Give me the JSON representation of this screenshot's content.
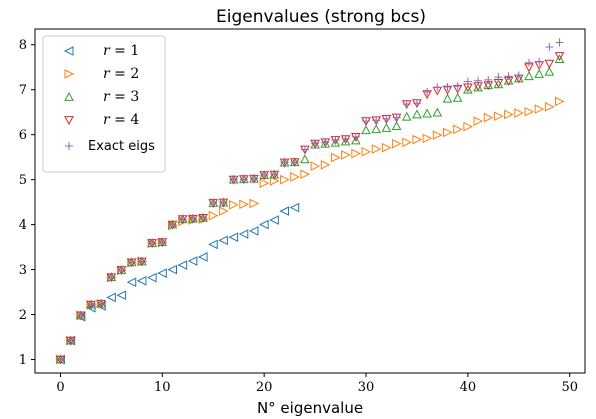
{
  "chart_data": {
    "type": "scatter",
    "title": "Eigenvalues (strong bcs)",
    "xlabel": "N° eigenvalue",
    "ylabel": "",
    "xlim": [
      -2.5,
      51.5
    ],
    "ylim": [
      0.7,
      8.35
    ],
    "xticks": [
      0,
      10,
      20,
      30,
      40,
      50
    ],
    "yticks": [
      1,
      2,
      3,
      4,
      5,
      6,
      7,
      8
    ],
    "grid": false,
    "legend_position": "top-left",
    "series": [
      {
        "name": "r = 1",
        "marker": "triangle-left",
        "color": "#1f77b4",
        "x": [
          0,
          1,
          2,
          3,
          4,
          5,
          6,
          7,
          8,
          9,
          10,
          11,
          12,
          13,
          14,
          15,
          16,
          17,
          18,
          19,
          20,
          21,
          22,
          23
        ],
        "y": [
          1.0,
          1.42,
          1.95,
          2.15,
          2.19,
          2.38,
          2.43,
          2.72,
          2.75,
          2.82,
          2.92,
          3.0,
          3.1,
          3.19,
          3.28,
          3.56,
          3.65,
          3.72,
          3.79,
          3.86,
          4.0,
          4.1,
          4.3,
          4.38
        ]
      },
      {
        "name": "r = 2",
        "marker": "triangle-right",
        "color": "#ff7f0e",
        "x": [
          0,
          1,
          2,
          3,
          4,
          5,
          6,
          7,
          8,
          9,
          10,
          11,
          12,
          13,
          14,
          15,
          16,
          17,
          18,
          19,
          20,
          21,
          22,
          23,
          24,
          25,
          26,
          27,
          28,
          29,
          30,
          31,
          32,
          33,
          34,
          35,
          36,
          37,
          38,
          39,
          40,
          41,
          42,
          43,
          44,
          45,
          46,
          47,
          48,
          49
        ],
        "y": [
          1.0,
          1.42,
          1.98,
          2.21,
          2.24,
          2.82,
          2.98,
          3.15,
          3.18,
          3.58,
          3.6,
          3.98,
          4.07,
          4.1,
          4.12,
          4.2,
          4.3,
          4.44,
          4.45,
          4.47,
          4.92,
          4.97,
          5.0,
          5.06,
          5.12,
          5.3,
          5.33,
          5.49,
          5.55,
          5.58,
          5.62,
          5.68,
          5.71,
          5.8,
          5.83,
          5.89,
          5.92,
          5.99,
          6.05,
          6.12,
          6.18,
          6.3,
          6.38,
          6.41,
          6.45,
          6.48,
          6.51,
          6.57,
          6.62,
          6.74
        ]
      },
      {
        "name": "r = 3",
        "marker": "triangle-up",
        "color": "#2ca02c",
        "x": [
          0,
          1,
          2,
          3,
          4,
          5,
          6,
          7,
          8,
          9,
          10,
          11,
          12,
          13,
          14,
          15,
          16,
          17,
          18,
          19,
          20,
          21,
          22,
          23,
          24,
          25,
          26,
          27,
          28,
          29,
          30,
          31,
          32,
          33,
          34,
          35,
          36,
          37,
          38,
          39,
          40,
          41,
          42,
          43,
          44,
          45,
          46,
          47,
          48,
          49
        ],
        "y": [
          1.0,
          1.42,
          1.98,
          2.22,
          2.24,
          2.83,
          2.99,
          3.16,
          3.18,
          3.59,
          3.61,
          4.0,
          4.12,
          4.13,
          4.15,
          4.48,
          4.49,
          5.0,
          5.01,
          5.02,
          5.1,
          5.11,
          5.38,
          5.39,
          5.45,
          5.78,
          5.8,
          5.82,
          5.85,
          5.87,
          6.1,
          6.12,
          6.15,
          6.19,
          6.4,
          6.45,
          6.47,
          6.49,
          6.8,
          6.82,
          7.0,
          7.05,
          7.1,
          7.12,
          7.2,
          7.25,
          7.3,
          7.35,
          7.4,
          7.68
        ]
      },
      {
        "name": "r = 4",
        "marker": "triangle-down",
        "color": "#d62728",
        "x": [
          0,
          1,
          2,
          3,
          4,
          5,
          6,
          7,
          8,
          9,
          10,
          11,
          12,
          13,
          14,
          15,
          16,
          17,
          18,
          19,
          20,
          21,
          22,
          23,
          24,
          25,
          26,
          27,
          28,
          29,
          30,
          31,
          32,
          33,
          34,
          35,
          36,
          37,
          38,
          39,
          40,
          41,
          42,
          43,
          44,
          45,
          46,
          47,
          48,
          49
        ],
        "y": [
          1.0,
          1.42,
          1.98,
          2.22,
          2.24,
          2.83,
          2.99,
          3.16,
          3.18,
          3.59,
          3.61,
          4.0,
          4.12,
          4.13,
          4.15,
          4.48,
          4.49,
          5.0,
          5.01,
          5.02,
          5.1,
          5.11,
          5.38,
          5.39,
          5.67,
          5.8,
          5.83,
          5.88,
          5.9,
          5.95,
          6.3,
          6.32,
          6.35,
          6.38,
          6.68,
          6.7,
          6.9,
          6.98,
          7.0,
          7.02,
          7.05,
          7.08,
          7.1,
          7.15,
          7.2,
          7.25,
          7.5,
          7.55,
          7.58,
          7.75
        ]
      },
      {
        "name": "Exact eigs",
        "marker": "plus",
        "color": "#9467bd",
        "x": [
          0,
          1,
          2,
          3,
          4,
          5,
          6,
          7,
          8,
          9,
          10,
          11,
          12,
          13,
          14,
          15,
          16,
          17,
          18,
          19,
          20,
          21,
          22,
          23,
          24,
          25,
          26,
          27,
          28,
          29,
          30,
          31,
          32,
          33,
          34,
          35,
          36,
          37,
          38,
          39,
          40,
          41,
          42,
          43,
          44,
          45,
          46,
          47,
          48,
          49
        ],
        "y": [
          1.0,
          1.42,
          1.98,
          2.22,
          2.24,
          2.83,
          2.99,
          3.16,
          3.18,
          3.59,
          3.61,
          4.0,
          4.12,
          4.13,
          4.15,
          4.48,
          4.49,
          5.0,
          5.01,
          5.02,
          5.1,
          5.11,
          5.38,
          5.39,
          5.67,
          5.8,
          5.83,
          5.88,
          5.9,
          5.95,
          6.3,
          6.32,
          6.35,
          6.38,
          6.68,
          6.7,
          6.95,
          7.05,
          7.06,
          7.08,
          7.18,
          7.2,
          7.22,
          7.28,
          7.3,
          7.32,
          7.6,
          7.62,
          7.95,
          8.05
        ]
      }
    ]
  },
  "legend": {
    "entries": [
      {
        "prefix": "r",
        "eq": " = ",
        "value": "1"
      },
      {
        "prefix": "r",
        "eq": " = ",
        "value": "2"
      },
      {
        "prefix": "r",
        "eq": " = ",
        "value": "3"
      },
      {
        "prefix": "r",
        "eq": " = ",
        "value": "4"
      },
      {
        "prefix": "",
        "eq": "",
        "value": "Exact eigs"
      }
    ]
  }
}
